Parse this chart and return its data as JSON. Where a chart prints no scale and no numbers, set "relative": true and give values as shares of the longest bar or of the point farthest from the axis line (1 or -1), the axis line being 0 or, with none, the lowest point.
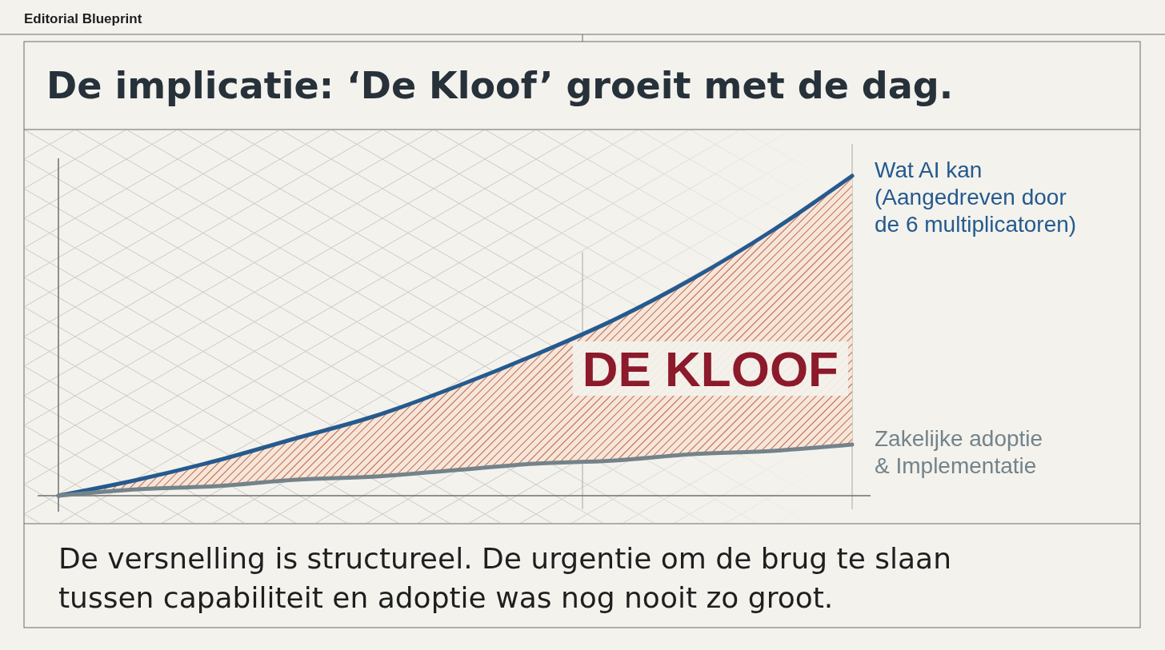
{
  "chart_data": {
    "type": "line",
    "title": "De implicatie: ‘De Kloof’ groeit met de dag.",
    "relative": true,
    "categories": [
      null,
      null,
      null,
      null,
      null,
      null,
      null,
      null,
      null,
      null,
      null
    ],
    "series": [
      {
        "name": "Wat AI kan (Aangedreven door de 6 multiplicatoren)",
        "color": "#255a8e",
        "values": [
          0,
          0.05,
          0.11,
          0.18,
          0.25,
          0.34,
          0.44,
          0.55,
          0.68,
          0.83,
          1
        ],
        "lower": [
          0,
          0.02,
          0.03,
          0.05,
          0.06,
          0.08,
          0.1,
          0.11,
          0.13,
          0.14,
          0.16
        ],
        "upper": [
          0,
          0.05,
          0.11,
          0.18,
          0.25,
          0.34,
          0.44,
          0.55,
          0.68,
          0.83,
          1
        ]
      },
      {
        "name": "Zakelijke adoptie & Implementatie",
        "color": "#74838a",
        "values": [
          0,
          0.02,
          0.03,
          0.05,
          0.06,
          0.08,
          0.1,
          0.11,
          0.13,
          0.14,
          0.16
        ]
      }
    ],
    "annotations": [
      "Editorial Blueprint",
      "DE KLOOF",
      "De versnelling is structureel. De urgentie om de brug te slaan tussen capabiliteit en adoptie was nog nooit zo groot."
    ]
  }
}
